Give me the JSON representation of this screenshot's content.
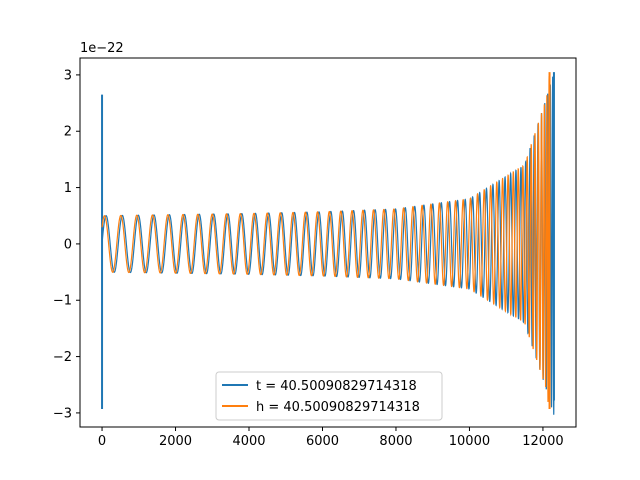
{
  "chart_data": {
    "type": "line",
    "title": "",
    "xlabel": "",
    "ylabel": "",
    "offset_text": "1e−22",
    "scale": 1e-22,
    "xlim": [
      -600,
      12900
    ],
    "ylim": [
      -3.25,
      3.3
    ],
    "x_ticks": [
      0,
      2000,
      4000,
      6000,
      8000,
      10000,
      12000
    ],
    "x_tick_labels": [
      "0",
      "2000",
      "4000",
      "6000",
      "8000",
      "10000",
      "12000"
    ],
    "y_ticks": [
      -3,
      -2,
      -1,
      0,
      1,
      2,
      3
    ],
    "y_tick_labels": [
      "−3",
      "−2",
      "−1",
      "0",
      "1",
      "2",
      "3"
    ],
    "grid": false,
    "legend_position": "lower center",
    "series": [
      {
        "name": "t = 40.50090829714318",
        "color": "#1f77b4",
        "description_points": {
          "x": [
            0,
            2000,
            4000,
            6000,
            8000,
            10000,
            11500,
            12100,
            12300
          ],
          "amplitude": [
            0.5,
            0.52,
            0.54,
            0.57,
            0.62,
            0.8,
            1.4,
            2.6,
            3.05
          ]
        },
        "start_spikes": {
          "x": 0,
          "max": 2.65,
          "min": -2.93
        },
        "end_spikes": {
          "x": 12300,
          "max": 3.05,
          "min": -2.78
        }
      },
      {
        "name": "h = 40.50090829714318",
        "color": "#ff7f0e",
        "description_points": {
          "x": [
            0,
            2000,
            4000,
            6000,
            8000,
            10000,
            11500,
            12100,
            12180
          ],
          "amplitude": [
            0.5,
            0.52,
            0.54,
            0.57,
            0.62,
            0.8,
            1.4,
            2.6,
            3.05
          ]
        },
        "end_spikes": {
          "x": 12180,
          "max": 3.05,
          "min": -2.93
        }
      }
    ]
  }
}
